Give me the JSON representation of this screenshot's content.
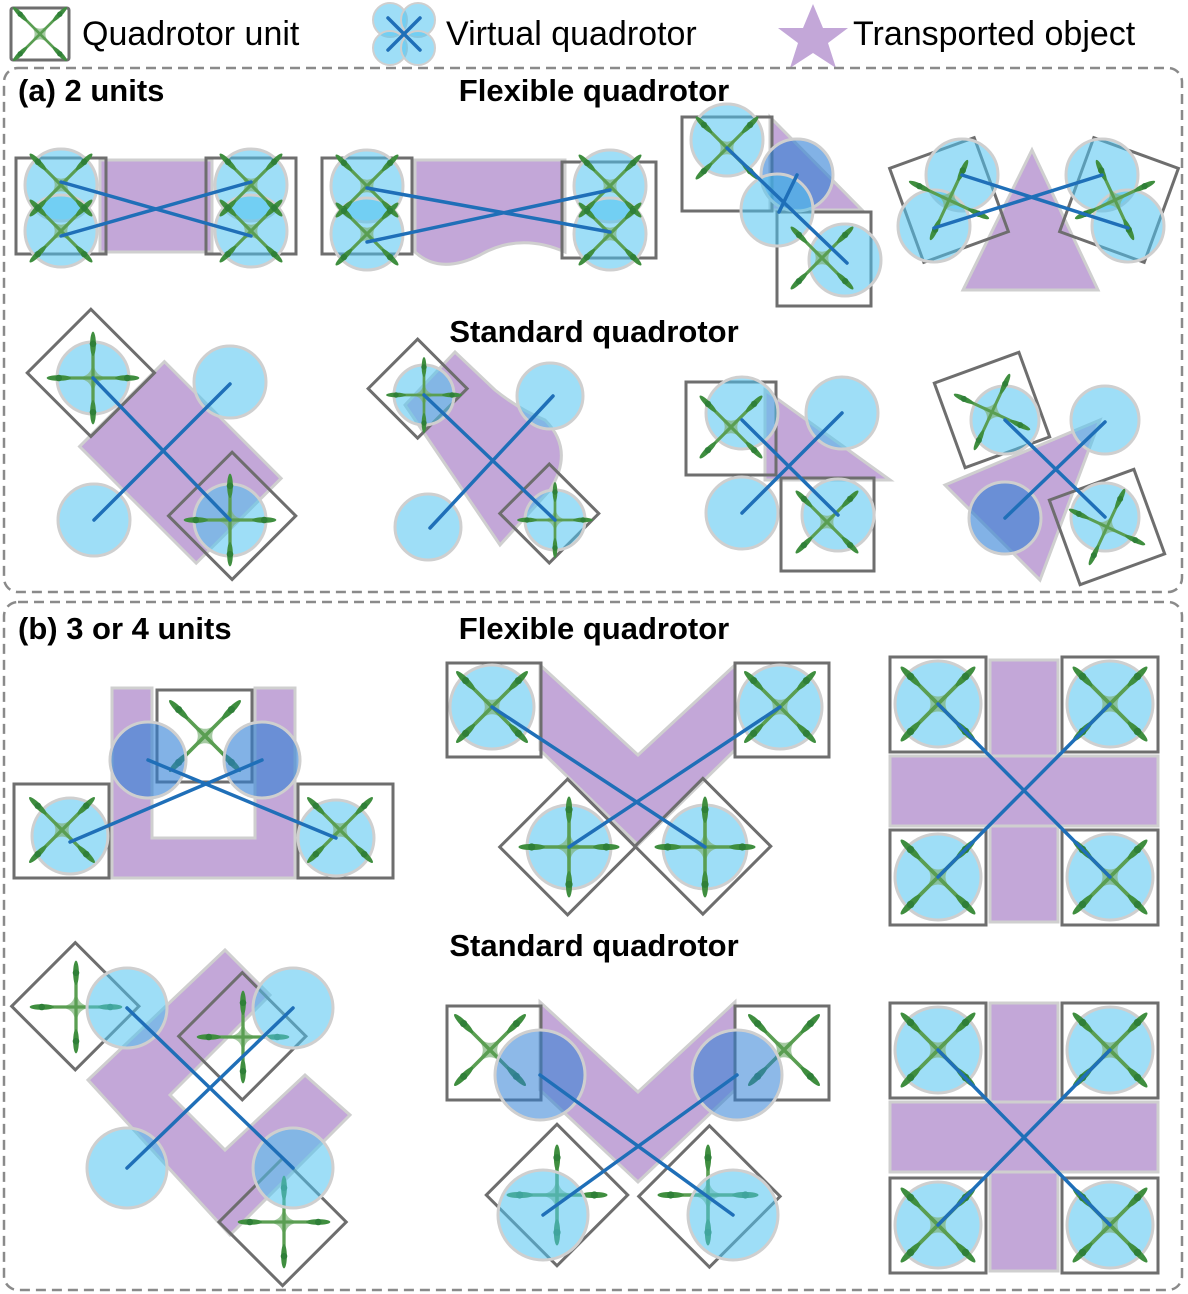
{
  "legend": {
    "unit_label": "Quadrotor unit",
    "virtual_label": "Virtual quadrotor",
    "object_label": "Transported object",
    "unit_icon": "quadrotor-unit-icon",
    "virtual_icon": "virtual-quadrotor-icon",
    "object_icon": "star-icon"
  },
  "panel_a": {
    "title": "(a) 2 units",
    "flexible_title": "Flexible quadrotor",
    "standard_title": "Standard quadrotor"
  },
  "panel_b": {
    "title": "(b) 3 or 4 units",
    "flexible_title": "Flexible quadrotor",
    "standard_title": "Standard quadrotor"
  },
  "colors": {
    "object": "#c3a7d8",
    "virtual_circle": "#4fc3f0",
    "rigid_bar": "#1f6fb8",
    "quadrotor": "#5a9e52",
    "unit_frame": "#6e6e6e",
    "panel_border": "#8a8a8a"
  }
}
